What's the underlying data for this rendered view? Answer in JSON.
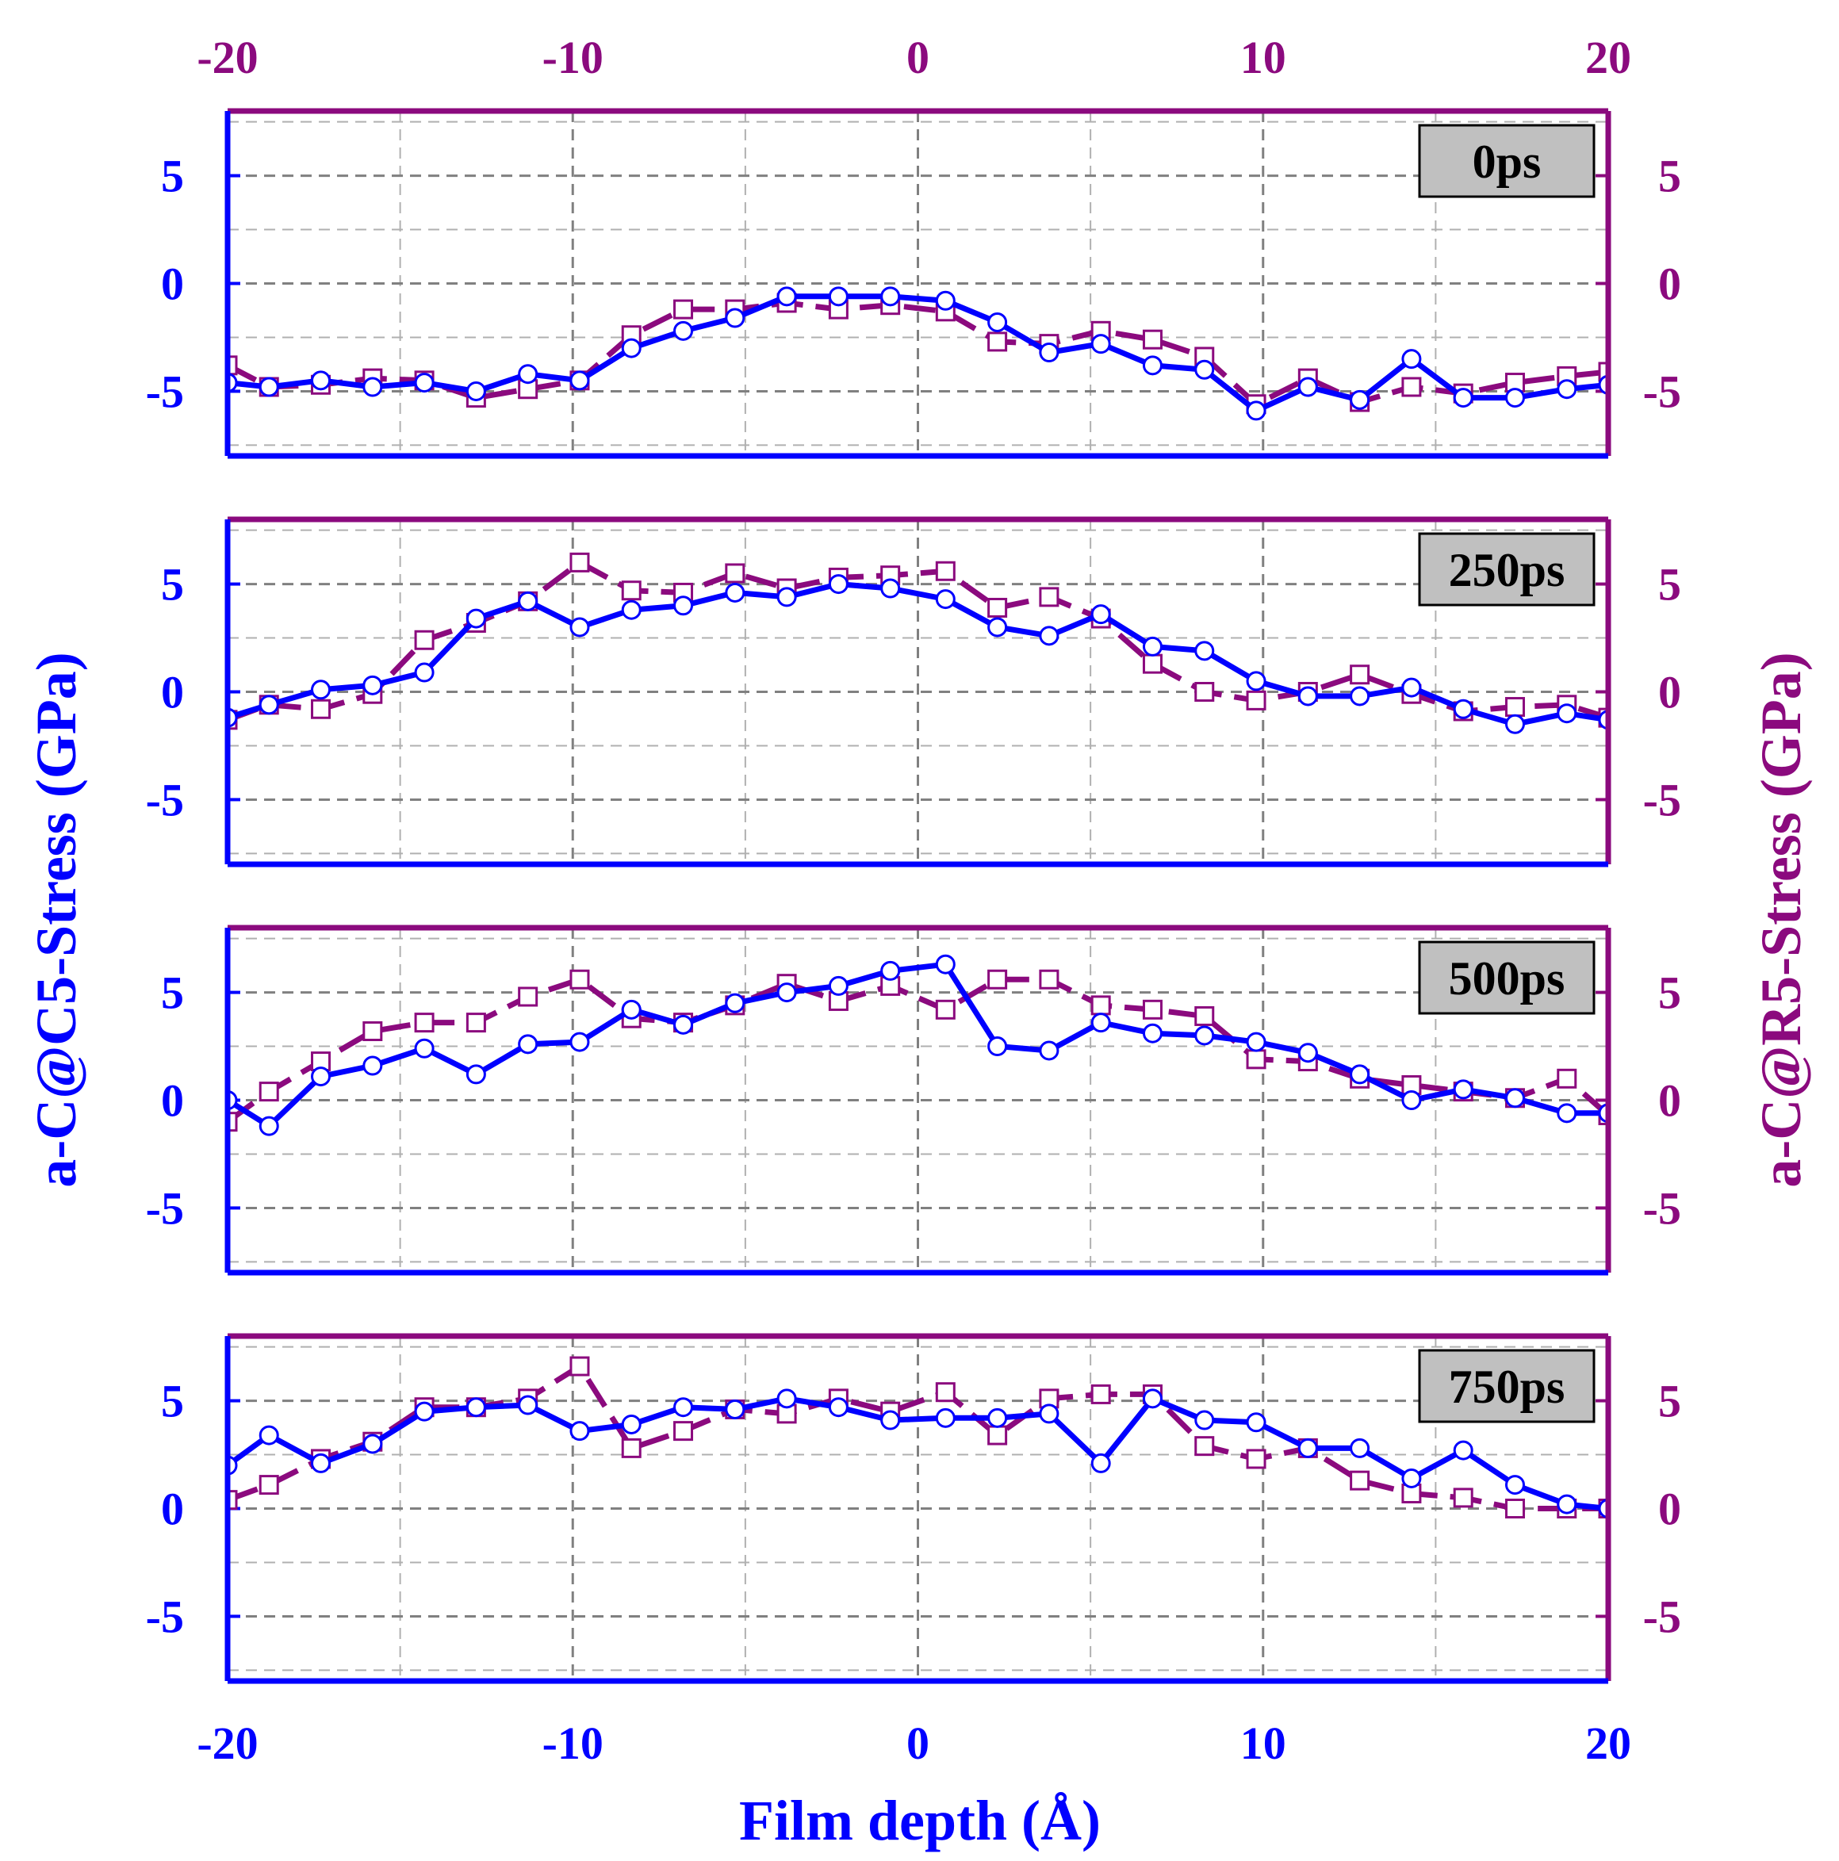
{
  "chart_data": {
    "type": "line",
    "xlabel": "Film depth (Å)",
    "ylabel_left": "a-C@C5-Stress (GPa)",
    "ylabel_right": "a-C@R5-Stress (GPa)",
    "xlim": [
      -20,
      20
    ],
    "ylim": [
      -8,
      8
    ],
    "xticks": [
      -20,
      -10,
      0,
      10,
      20
    ],
    "xtick_labels": [
      "-20",
      "-10",
      "0",
      "10",
      "20"
    ],
    "yticks": [
      5,
      0,
      -5
    ],
    "ytick_labels": [
      "5",
      "0",
      "-5"
    ],
    "grid": true,
    "colors": {
      "c5": "#0000ff",
      "r5": "#8b0a7e",
      "badge": "#c0c0c0"
    },
    "x": [
      -20,
      -18.8,
      -17.3,
      -15.8,
      -14.3,
      -12.8,
      -11.3,
      -9.8,
      -8.3,
      -6.8,
      -5.3,
      -3.8,
      -2.3,
      -0.8,
      0.8,
      2.3,
      3.8,
      5.3,
      6.8,
      8.3,
      9.8,
      11.3,
      12.8,
      14.3,
      15.8,
      17.3,
      18.8,
      20
    ],
    "panels": [
      {
        "label": "0ps",
        "series": [
          {
            "name": "a-C@C5",
            "values": [
              -4.6,
              -4.8,
              -4.5,
              -4.8,
              -4.6,
              -5.0,
              -4.2,
              -4.5,
              -3.0,
              -2.2,
              -1.6,
              -0.6,
              -0.6,
              -0.6,
              -0.8,
              -1.8,
              -3.2,
              -2.8,
              -3.8,
              -4.0,
              -5.9,
              -4.8,
              -5.4,
              -3.5,
              -5.3,
              -5.3,
              -4.9,
              -4.7
            ]
          },
          {
            "name": "a-C@R5",
            "values": [
              -3.8,
              -4.8,
              -4.7,
              -4.4,
              -4.5,
              -5.3,
              -4.9,
              -4.5,
              -2.4,
              -1.2,
              -1.2,
              -0.9,
              -1.2,
              -1.0,
              -1.3,
              -2.7,
              -2.8,
              -2.2,
              -2.6,
              -3.4,
              -5.6,
              -4.4,
              -5.5,
              -4.8,
              -5.1,
              -4.6,
              -4.3,
              -4.1
            ]
          }
        ]
      },
      {
        "label": "250ps",
        "series": [
          {
            "name": "a-C@C5",
            "values": [
              -1.2,
              -0.6,
              0.1,
              0.3,
              0.9,
              3.4,
              4.2,
              3.0,
              3.8,
              4.0,
              4.6,
              4.4,
              5.0,
              4.8,
              4.3,
              3.0,
              2.6,
              3.6,
              2.1,
              1.9,
              0.5,
              -0.2,
              -0.2,
              0.2,
              -0.8,
              -1.5,
              -1.0,
              -1.3
            ]
          },
          {
            "name": "a-C@R5",
            "values": [
              -1.3,
              -0.6,
              -0.8,
              -0.1,
              2.4,
              3.2,
              4.2,
              6.0,
              4.7,
              4.6,
              5.5,
              4.8,
              5.3,
              5.4,
              5.6,
              3.9,
              4.4,
              3.4,
              1.3,
              0.0,
              -0.4,
              0.0,
              0.8,
              -0.1,
              -0.9,
              -0.7,
              -0.6,
              -1.2
            ]
          }
        ]
      },
      {
        "label": "500ps",
        "series": [
          {
            "name": "a-C@C5",
            "values": [
              0.0,
              -1.2,
              1.1,
              1.6,
              2.4,
              1.2,
              2.6,
              2.7,
              4.2,
              3.5,
              4.5,
              5.0,
              5.3,
              6.0,
              6.3,
              2.5,
              2.3,
              3.6,
              3.1,
              3.0,
              2.7,
              2.2,
              1.2,
              0.0,
              0.5,
              0.1,
              -0.6,
              -0.6
            ]
          },
          {
            "name": "a-C@R5",
            "values": [
              -1.0,
              0.4,
              1.8,
              3.2,
              3.6,
              3.6,
              4.8,
              5.6,
              3.8,
              3.6,
              4.4,
              5.4,
              4.6,
              5.3,
              4.2,
              5.6,
              5.6,
              4.4,
              4.2,
              3.9,
              1.9,
              1.8,
              1.0,
              0.7,
              0.4,
              0.1,
              1.0,
              -0.7
            ]
          }
        ]
      },
      {
        "label": "750ps",
        "series": [
          {
            "name": "a-C@C5",
            "values": [
              2.0,
              3.4,
              2.1,
              3.0,
              4.5,
              4.7,
              4.8,
              3.6,
              3.9,
              4.7,
              4.6,
              5.1,
              4.7,
              4.1,
              4.2,
              4.2,
              4.4,
              2.1,
              5.1,
              4.1,
              4.0,
              2.8,
              2.8,
              1.4,
              2.7,
              1.1,
              0.2,
              0.0
            ]
          },
          {
            "name": "a-C@R5",
            "values": [
              0.4,
              1.1,
              2.3,
              3.1,
              4.7,
              4.7,
              5.1,
              6.6,
              2.8,
              3.6,
              4.6,
              4.4,
              5.1,
              4.5,
              5.4,
              3.4,
              5.1,
              5.3,
              5.3,
              2.9,
              2.3,
              2.8,
              1.3,
              0.7,
              0.5,
              0.0,
              0.0,
              0.0
            ]
          }
        ]
      }
    ]
  }
}
